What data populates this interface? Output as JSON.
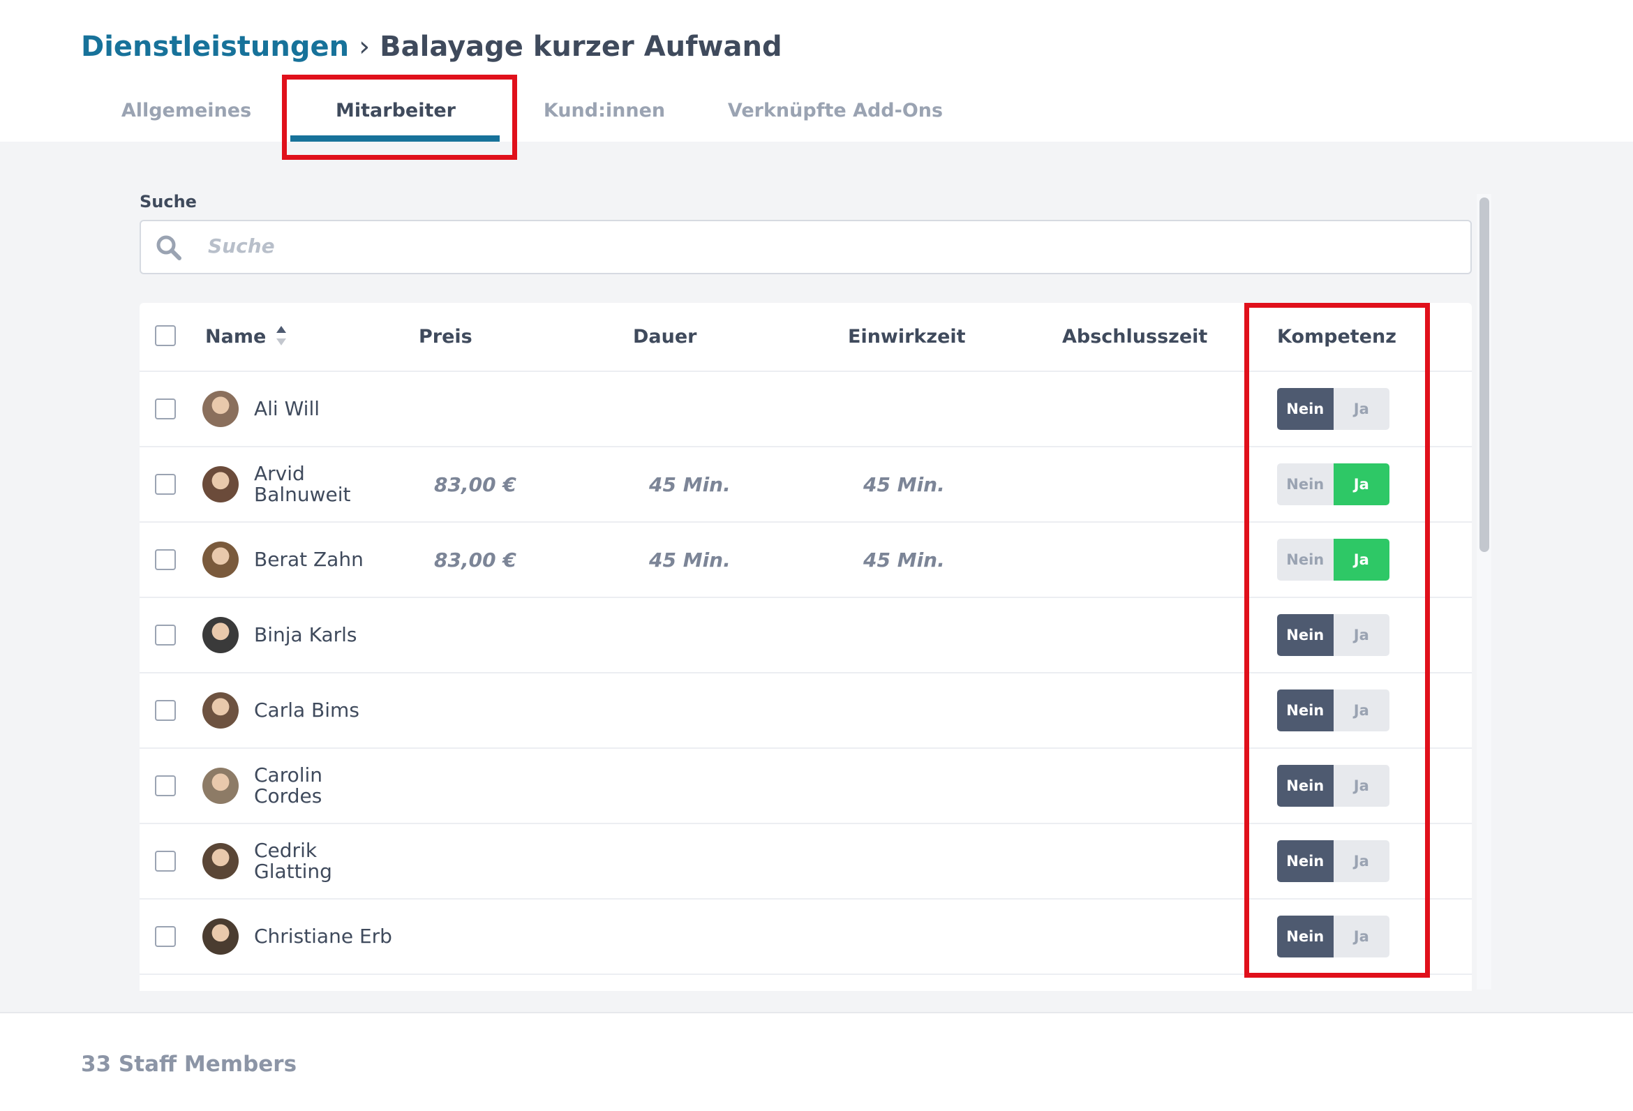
{
  "breadcrumb": {
    "parent": "Dienstleistungen",
    "current": "Balayage kurzer Aufwand"
  },
  "tabs": [
    "Allgemeines",
    "Mitarbeiter",
    "Kund:innen",
    "Verknüpfte Add-Ons"
  ],
  "active_tab": 1,
  "search": {
    "label": "Suche",
    "placeholder": "Suche"
  },
  "table": {
    "columns": [
      "Name",
      "Preis",
      "Dauer",
      "Einwirkzeit",
      "Abschlusszeit",
      "Kompetenz"
    ],
    "toggle": {
      "no": "Nein",
      "yes": "Ja"
    },
    "rows": [
      {
        "name": "Ali Will",
        "competent": false
      },
      {
        "name": "Arvid Balnuweit",
        "price": "83,00 €",
        "duration": "45 Min.",
        "exposure": "45 Min.",
        "competent": true
      },
      {
        "name": "Berat Zahn",
        "price": "83,00 €",
        "duration": "45 Min.",
        "exposure": "45 Min.",
        "competent": true
      },
      {
        "name": "Binja Karls",
        "competent": false
      },
      {
        "name": "Carla Bims",
        "competent": false
      },
      {
        "name": "Carolin Cordes",
        "competent": false
      },
      {
        "name": "Cedrik Glatting",
        "competent": false
      },
      {
        "name": "Christiane Erb",
        "competent": false
      }
    ]
  },
  "footer": "33 Staff Members"
}
